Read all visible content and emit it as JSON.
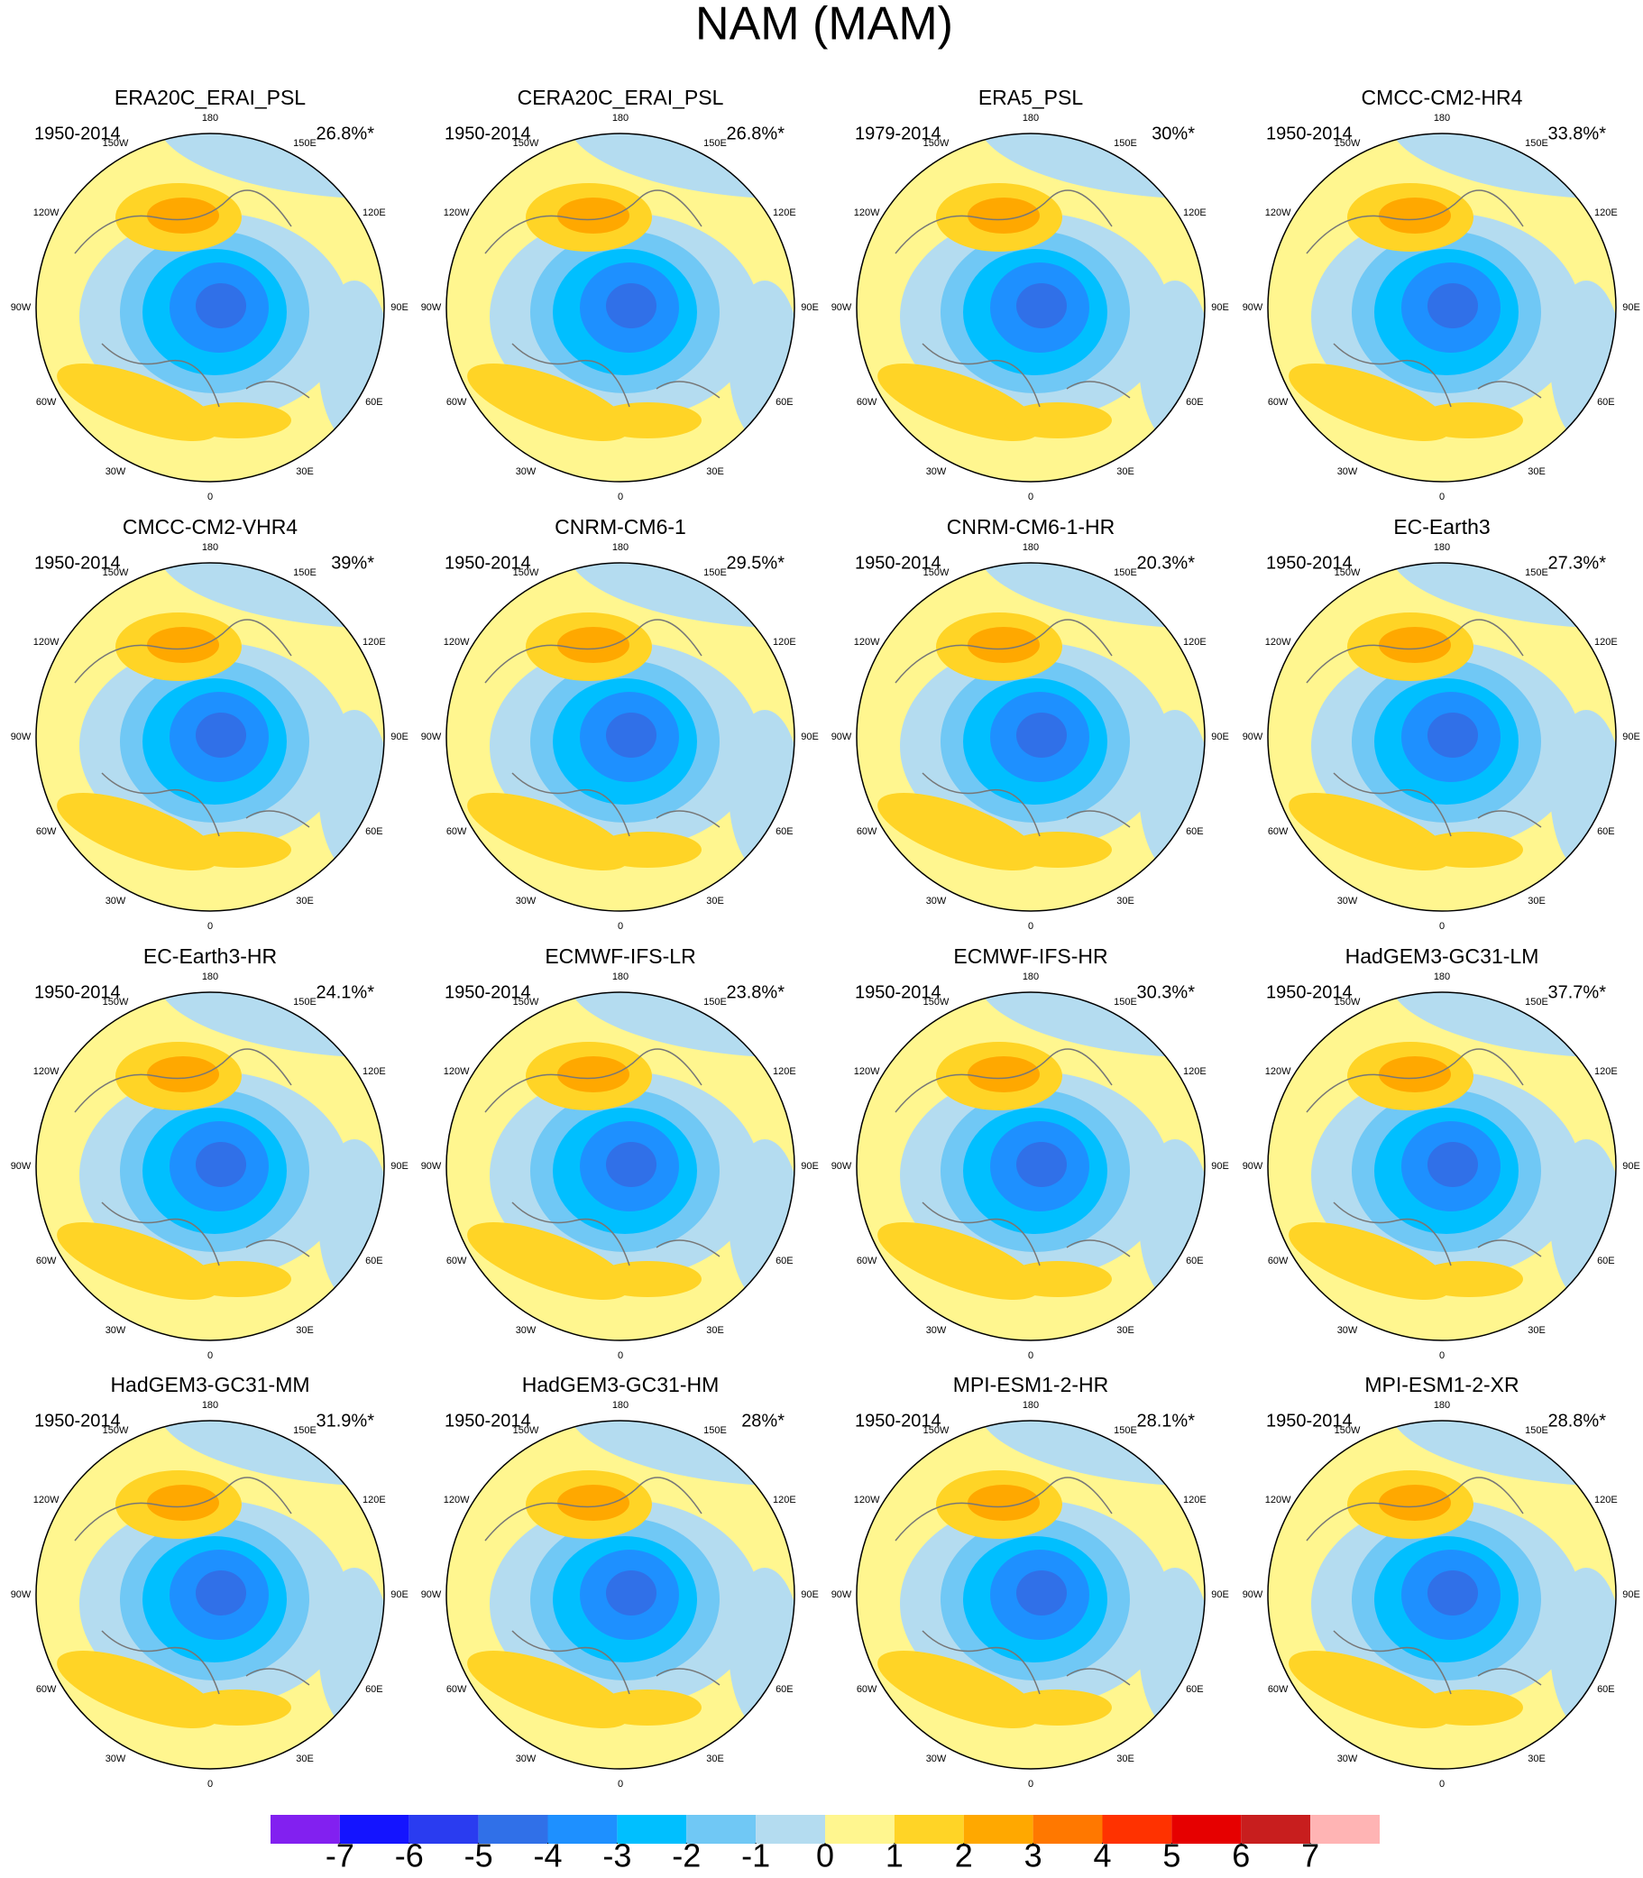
{
  "chart_data": {
    "type": "polar-map-panels",
    "title": "NAM (MAM)",
    "lon_labels": [
      "180",
      "150E",
      "120E",
      "90E",
      "60E",
      "30E",
      "0",
      "30W",
      "60W",
      "90W",
      "120W",
      "150W"
    ],
    "panels": [
      {
        "title": "ERA20C_ERAI_PSL",
        "period": "1950-2014",
        "percent": "26.8%*"
      },
      {
        "title": "CERA20C_ERAI_PSL",
        "period": "1950-2014",
        "percent": "26.8%*"
      },
      {
        "title": "ERA5_PSL",
        "period": "1979-2014",
        "percent": "30%*"
      },
      {
        "title": "CMCC-CM2-HR4",
        "period": "1950-2014",
        "percent": "33.8%*"
      },
      {
        "title": "CMCC-CM2-VHR4",
        "period": "1950-2014",
        "percent": "39%*"
      },
      {
        "title": "CNRM-CM6-1",
        "period": "1950-2014",
        "percent": "29.5%*"
      },
      {
        "title": "CNRM-CM6-1-HR",
        "period": "1950-2014",
        "percent": "20.3%*"
      },
      {
        "title": "EC-Earth3",
        "period": "1950-2014",
        "percent": "27.3%*"
      },
      {
        "title": "EC-Earth3-HR",
        "period": "1950-2014",
        "percent": "24.1%*"
      },
      {
        "title": "ECMWF-IFS-LR",
        "period": "1950-2014",
        "percent": "23.8%*"
      },
      {
        "title": "ECMWF-IFS-HR",
        "period": "1950-2014",
        "percent": "30.3%*"
      },
      {
        "title": "HadGEM3-GC31-LM",
        "period": "1950-2014",
        "percent": "37.7%*"
      },
      {
        "title": "HadGEM3-GC31-MM",
        "period": "1950-2014",
        "percent": "31.9%*"
      },
      {
        "title": "HadGEM3-GC31-HM",
        "period": "1950-2014",
        "percent": "28%*"
      },
      {
        "title": "MPI-ESM1-2-HR",
        "period": "1950-2014",
        "percent": "28.1%*"
      },
      {
        "title": "MPI-ESM1-2-XR",
        "period": "1950-2014",
        "percent": "28.8%*"
      }
    ],
    "colorbar": {
      "ticks": [
        -7,
        -6,
        -5,
        -4,
        -3,
        -2,
        -1,
        0,
        1,
        2,
        3,
        4,
        5,
        6,
        7
      ],
      "colors": [
        "#8220f0",
        "#1414ff",
        "#2a3cf0",
        "#3070e8",
        "#1e90ff",
        "#00bfff",
        "#70c8f5",
        "#b4dcf0",
        "#fff68f",
        "#ffd426",
        "#ffa800",
        "#ff7800",
        "#ff3200",
        "#e60000",
        "#c81e1e",
        "#ffb4b4"
      ]
    }
  }
}
